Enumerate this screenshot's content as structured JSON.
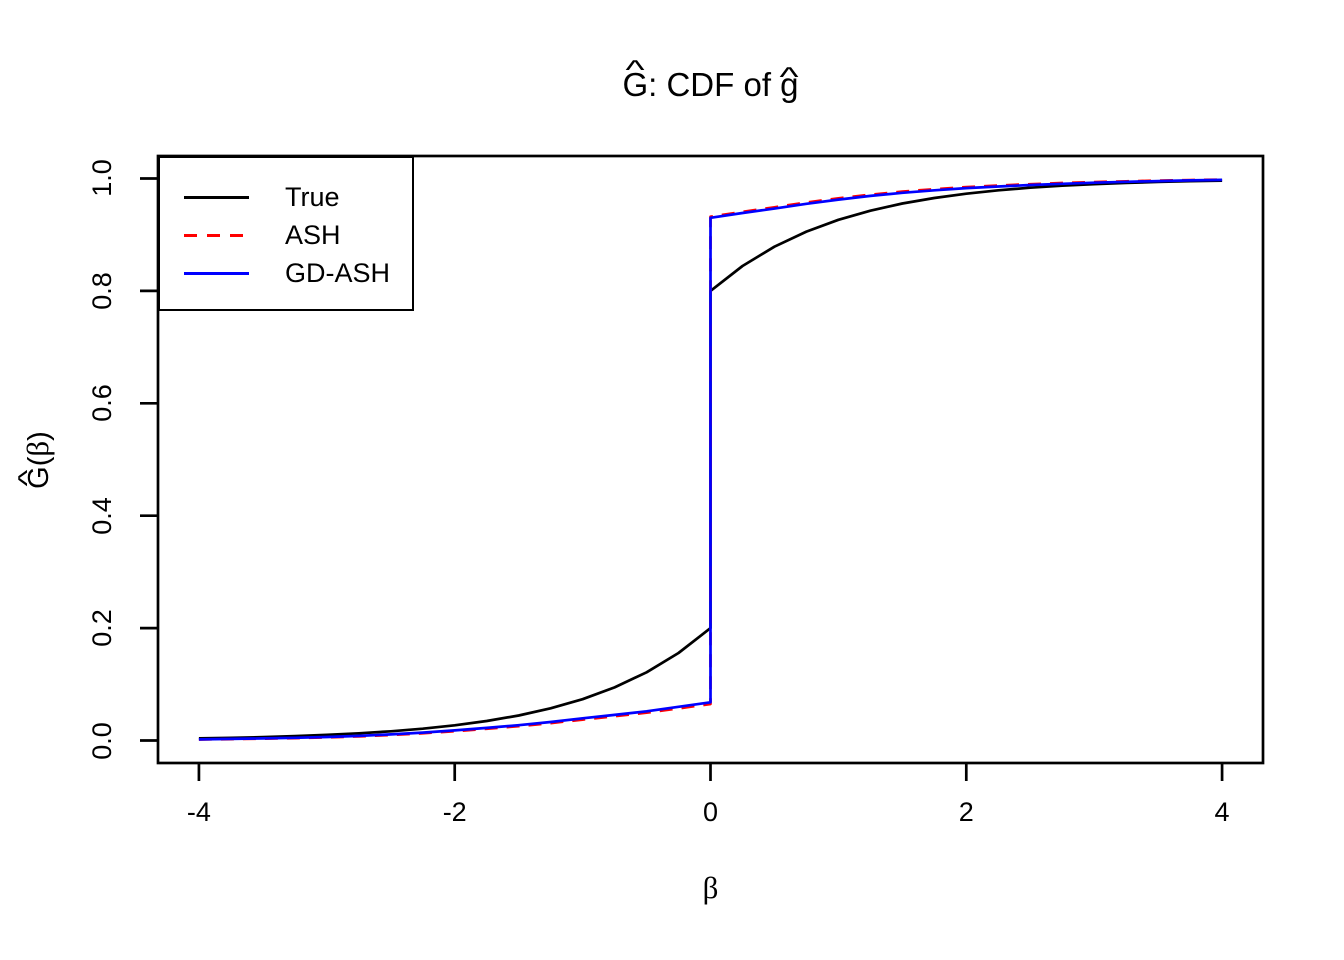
{
  "page": {
    "background": "#ffffff"
  },
  "title": {
    "hat": "^",
    "letter_G": "G",
    "middle": ": CDF of ",
    "letter_g": "g",
    "full": "Ĝ: CDF of ĝ"
  },
  "x_axis": {
    "label": "β",
    "ticks": [
      "-4",
      "-2",
      "0",
      "2",
      "4"
    ]
  },
  "y_axis": {
    "hat": "^",
    "letter": "G",
    "open": "(",
    "beta": "β",
    "close": ")",
    "full": "Ĝ(β)",
    "ticks": [
      "0.0",
      "0.2",
      "0.4",
      "0.6",
      "0.8",
      "1.0"
    ]
  },
  "legend": {
    "position": "topleft",
    "items": [
      {
        "label": "True",
        "color": "#000000",
        "style": "solid"
      },
      {
        "label": "ASH",
        "color": "#ff0000",
        "style": "dashed"
      },
      {
        "label": "GD-ASH",
        "color": "#0000ff",
        "style": "solid"
      }
    ]
  },
  "chart_data": {
    "type": "line",
    "title": "Ĝ: CDF of ĝ",
    "xlabel": "β",
    "ylabel": "Ĝ(β)",
    "xlim": [
      -4.32,
      4.32
    ],
    "ylim": [
      -0.04,
      1.04
    ],
    "x_ticks": [
      -4,
      -2,
      0,
      2,
      4
    ],
    "y_ticks": [
      0,
      0.2,
      0.4,
      0.6,
      0.8,
      1.0
    ],
    "grid": false,
    "legend_position": "topleft",
    "series": [
      {
        "name": "True",
        "color": "#000000",
        "linestyle": "solid",
        "linewidth": 2.7,
        "description": "True CDF: jump from 0.2 to 0.8 at beta=0 (0.6 point mass at 0 + 0.4 Laplace tails)",
        "points": [
          [
            -4,
            0.0037
          ],
          [
            -3.75,
            0.0047
          ],
          [
            -3.5,
            0.006
          ],
          [
            -3.25,
            0.0078
          ],
          [
            -3,
            0.01
          ],
          [
            -2.75,
            0.0128
          ],
          [
            -2.5,
            0.0164
          ],
          [
            -2.25,
            0.0211
          ],
          [
            -2,
            0.0271
          ],
          [
            -1.75,
            0.0348
          ],
          [
            -1.5,
            0.0446
          ],
          [
            -1.25,
            0.0573
          ],
          [
            -1,
            0.0736
          ],
          [
            -0.75,
            0.0945
          ],
          [
            -0.5,
            0.1213
          ],
          [
            -0.25,
            0.1558
          ],
          [
            0,
            0.2
          ],
          [
            0,
            0.8
          ],
          [
            0.25,
            0.8442
          ],
          [
            0.5,
            0.8787
          ],
          [
            0.75,
            0.9055
          ],
          [
            1,
            0.9264
          ],
          [
            1.25,
            0.9427
          ],
          [
            1.5,
            0.9554
          ],
          [
            1.75,
            0.9652
          ],
          [
            2,
            0.9729
          ],
          [
            2.25,
            0.9789
          ],
          [
            2.5,
            0.9836
          ],
          [
            2.75,
            0.9872
          ],
          [
            3,
            0.99
          ],
          [
            3.25,
            0.9922
          ],
          [
            3.5,
            0.994
          ],
          [
            3.75,
            0.9953
          ],
          [
            4,
            0.9963
          ]
        ]
      },
      {
        "name": "ASH",
        "color": "#ff0000",
        "linestyle": "dashed",
        "linewidth": 2.7,
        "description": "ASH estimate: jump from ~0.065 to ~0.932 at beta=0",
        "points": [
          [
            -4,
            0.0018
          ],
          [
            -3.75,
            0.0025
          ],
          [
            -3.5,
            0.0033
          ],
          [
            -3.25,
            0.0043
          ],
          [
            -3,
            0.0056
          ],
          [
            -2.75,
            0.0074
          ],
          [
            -2.5,
            0.0098
          ],
          [
            -2.25,
            0.0128
          ],
          [
            -2,
            0.0165
          ],
          [
            -1.75,
            0.0208
          ],
          [
            -1.5,
            0.0254
          ],
          [
            -1.25,
            0.031
          ],
          [
            -1,
            0.0373
          ],
          [
            -0.75,
            0.0432
          ],
          [
            -0.5,
            0.0495
          ],
          [
            -0.25,
            0.0572
          ],
          [
            0,
            0.065
          ],
          [
            0,
            0.932
          ],
          [
            0.25,
            0.9405
          ],
          [
            0.5,
            0.9487
          ],
          [
            0.75,
            0.9572
          ],
          [
            1,
            0.9648
          ],
          [
            1.25,
            0.9712
          ],
          [
            1.5,
            0.9766
          ],
          [
            1.75,
            0.981
          ],
          [
            2,
            0.9846
          ],
          [
            2.25,
            0.9875
          ],
          [
            2.5,
            0.9899
          ],
          [
            2.75,
            0.9919
          ],
          [
            3,
            0.9936
          ],
          [
            3.25,
            0.995
          ],
          [
            3.5,
            0.9962
          ],
          [
            3.75,
            0.9972
          ],
          [
            4,
            0.998
          ]
        ]
      },
      {
        "name": "GD-ASH",
        "color": "#0000ff",
        "linestyle": "solid",
        "linewidth": 2.7,
        "description": "GD-ASH estimate: jump from ~0.068 to ~0.930 at beta=0",
        "points": [
          [
            -4,
            0.002
          ],
          [
            -3.75,
            0.0028
          ],
          [
            -3.5,
            0.0037
          ],
          [
            -3.25,
            0.0048
          ],
          [
            -3,
            0.0062
          ],
          [
            -2.75,
            0.0082
          ],
          [
            -2.5,
            0.0108
          ],
          [
            -2.25,
            0.014
          ],
          [
            -2,
            0.018
          ],
          [
            -1.75,
            0.0225
          ],
          [
            -1.5,
            0.0273
          ],
          [
            -1.25,
            0.033
          ],
          [
            -1,
            0.0395
          ],
          [
            -0.75,
            0.0455
          ],
          [
            -0.5,
            0.052
          ],
          [
            -0.25,
            0.06
          ],
          [
            0,
            0.068
          ],
          [
            0,
            0.93
          ],
          [
            0.25,
            0.9385
          ],
          [
            0.5,
            0.9465
          ],
          [
            0.75,
            0.955
          ],
          [
            1,
            0.9625
          ],
          [
            1.25,
            0.969
          ],
          [
            1.5,
            0.9745
          ],
          [
            1.75,
            0.979
          ],
          [
            2,
            0.9828
          ],
          [
            2.25,
            0.9858
          ],
          [
            2.5,
            0.9884
          ],
          [
            2.75,
            0.9906
          ],
          [
            3,
            0.9925
          ],
          [
            3.25,
            0.9941
          ],
          [
            3.5,
            0.9954
          ],
          [
            3.75,
            0.9966
          ],
          [
            4,
            0.9975
          ]
        ]
      }
    ]
  }
}
